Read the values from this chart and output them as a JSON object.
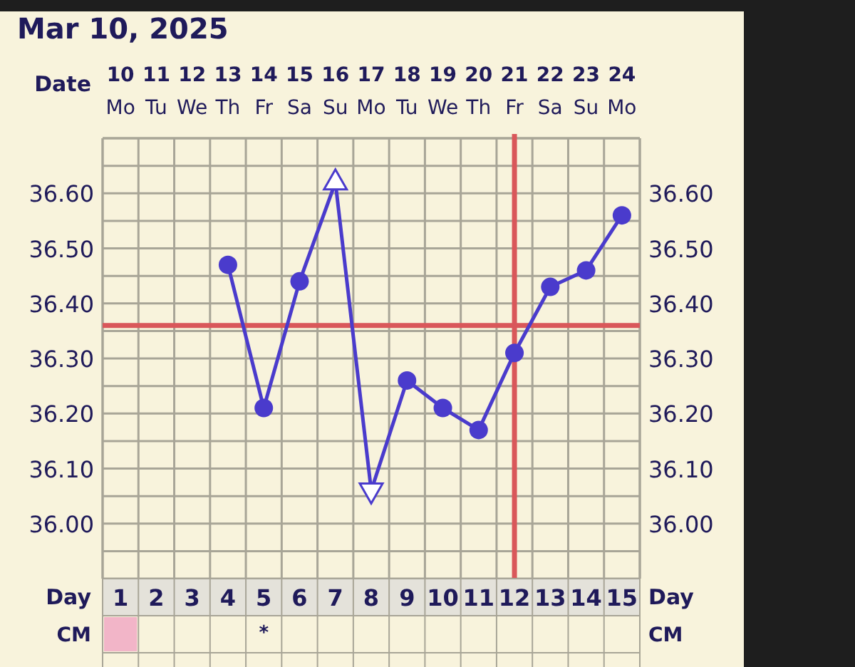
{
  "chart_data": {
    "type": "line",
    "title": "Mar 10, 2025",
    "xlabel": "Date",
    "x2label": "Day",
    "categories": [
      "10\nMo",
      "11\nTu",
      "12\nWe",
      "13\nTh",
      "14\nFr",
      "15\nSa",
      "16\nSu",
      "17\nMo",
      "18\nTu",
      "19\nWe",
      "20\nTh",
      "21\nFr",
      "22\nSa",
      "23\nSu",
      "24\nMo"
    ],
    "x2lim": [
      0.5,
      15.5
    ],
    "x2ticks": [
      1,
      2,
      3,
      4,
      5,
      6,
      7,
      8,
      9,
      10,
      11,
      12,
      13,
      14,
      15
    ],
    "ylim": [
      35.9,
      36.7
    ],
    "yticks": [
      {
        "value": 36.0,
        "label": "36.00"
      },
      {
        "value": 36.1,
        "label": "36.10"
      },
      {
        "value": 36.2,
        "label": "36.20"
      },
      {
        "value": 36.3,
        "label": "36.30"
      },
      {
        "value": 36.4,
        "label": "36.40"
      },
      {
        "value": 36.5,
        "label": "36.50"
      },
      {
        "value": 36.6,
        "label": "36.60"
      }
    ],
    "y2lim": [
      35.9,
      36.7
    ],
    "y2ticks": [
      {
        "value": 36.0,
        "label": "36.00"
      },
      {
        "value": 36.1,
        "label": "36.10"
      },
      {
        "value": 36.2,
        "label": "36.20"
      },
      {
        "value": 36.3,
        "label": "36.30"
      },
      {
        "value": 36.4,
        "label": "36.40"
      },
      {
        "value": 36.5,
        "label": "36.50"
      },
      {
        "value": 36.6,
        "label": "36.60"
      }
    ],
    "grid": true,
    "line_style": "solid",
    "series": [
      {
        "color": "#4a3bcc",
        "marker": "none",
        "values": [
          null,
          null,
          null,
          36.47,
          36.21,
          36.44,
          36.62,
          36.06,
          36.26,
          36.21,
          36.17,
          36.31,
          36.43,
          36.46,
          36.56
        ]
      },
      {
        "type": "scatter",
        "color": "#4a3bcc",
        "marker": "circle",
        "values": [
          null,
          null,
          null,
          36.47,
          36.21,
          36.44,
          null,
          null,
          36.26,
          36.21,
          36.17,
          36.31,
          36.43,
          36.46,
          36.56
        ]
      },
      {
        "type": "scatter",
        "color": "#4a3bcc",
        "marker": "triangle",
        "values": [
          null,
          null,
          null,
          null,
          null,
          null,
          36.62,
          36.06,
          null,
          null,
          null,
          null,
          null,
          null,
          null
        ]
      }
    ],
    "ref_lines": [
      {
        "axis": "y",
        "value": 36.36,
        "color": "#d9575a"
      },
      {
        "axis": "x",
        "value": "21\nFr",
        "color": "#d9575a"
      }
    ],
    "annotations": [
      "CM",
      "*"
    ]
  }
}
